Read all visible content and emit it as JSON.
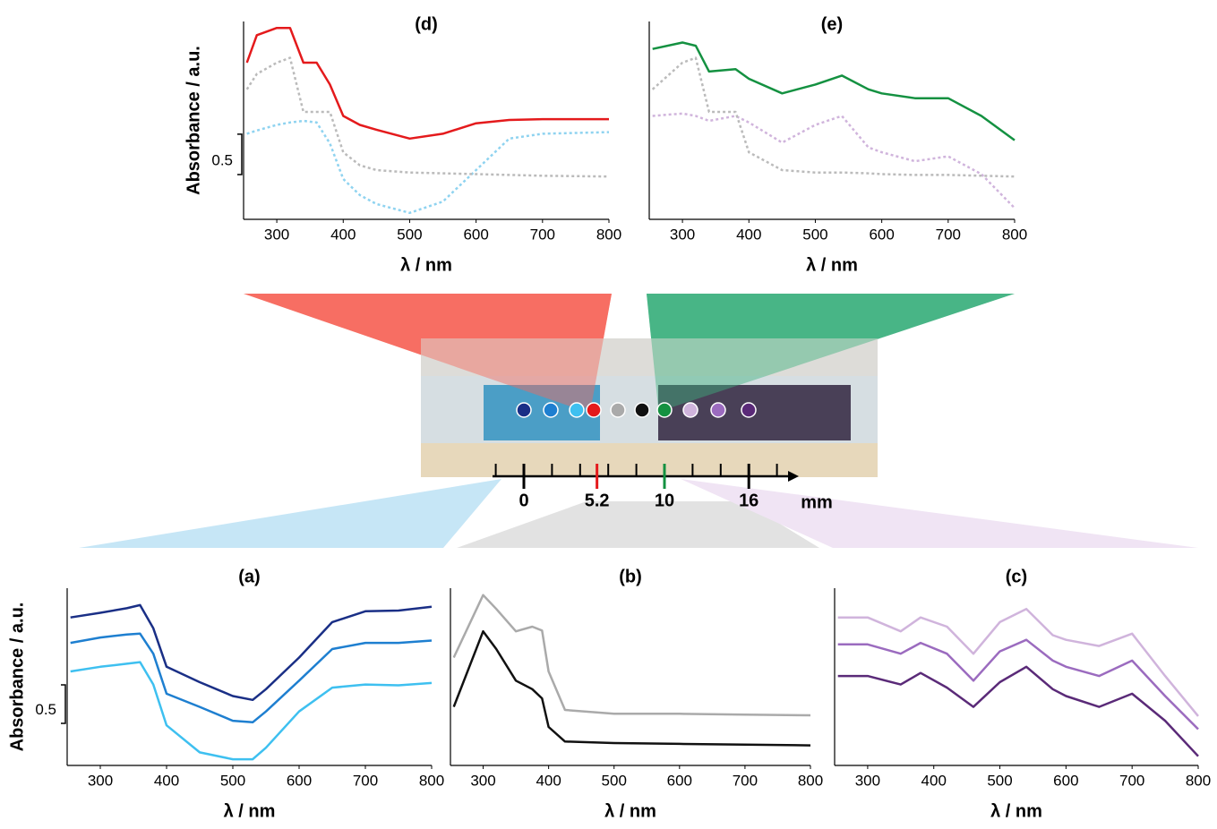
{
  "chart_data": [
    {
      "type": "line",
      "title": "(a)",
      "ylabel": "Absorbance / a.u.",
      "xlabel": "λ / nm",
      "scale_bar": 0.5,
      "x": [
        255,
        300,
        340,
        360,
        380,
        400,
        450,
        500,
        530,
        550,
        600,
        650,
        700,
        750,
        800
      ],
      "series": [
        {
          "color": "#1a2f86",
          "values": [
            1.92,
            1.98,
            2.04,
            2.08,
            1.78,
            1.28,
            1.08,
            0.9,
            0.85,
            0.99,
            1.4,
            1.86,
            2.0,
            2.01,
            2.06
          ]
        },
        {
          "color": "#1e7fd0",
          "values": [
            1.59,
            1.66,
            1.7,
            1.71,
            1.45,
            0.93,
            0.76,
            0.58,
            0.56,
            0.7,
            1.1,
            1.51,
            1.59,
            1.59,
            1.62
          ]
        },
        {
          "color": "#3ec0f0",
          "values": [
            1.22,
            1.28,
            1.32,
            1.34,
            1.05,
            0.52,
            0.17,
            0.08,
            0.08,
            0.23,
            0.7,
            1.01,
            1.05,
            1.04,
            1.07
          ]
        }
      ],
      "xlim": [
        250,
        800
      ],
      "xticks": [
        300,
        400,
        500,
        600,
        700,
        800
      ],
      "ylim": [
        0,
        2.3
      ]
    },
    {
      "type": "line",
      "title": "(b)",
      "xlabel": "λ / nm",
      "x": [
        255,
        300,
        320,
        350,
        375,
        390,
        400,
        425,
        500,
        600,
        700,
        800
      ],
      "series": [
        {
          "color": "#aaaaaa",
          "values": [
            1.4,
            2.21,
            2.03,
            1.74,
            1.8,
            1.75,
            1.22,
            0.72,
            0.67,
            0.67,
            0.66,
            0.65
          ]
        },
        {
          "color": "#111111",
          "values": [
            0.76,
            1.74,
            1.51,
            1.1,
            0.99,
            0.87,
            0.5,
            0.31,
            0.29,
            0.28,
            0.27,
            0.26
          ]
        }
      ],
      "xlim": [
        250,
        800
      ],
      "xticks": [
        300,
        400,
        500,
        600,
        700,
        800
      ],
      "ylim": [
        0,
        2.3
      ]
    },
    {
      "type": "line",
      "title": "(c)",
      "xlabel": "λ / nm",
      "x": [
        255,
        300,
        350,
        380,
        420,
        460,
        500,
        540,
        580,
        600,
        650,
        700,
        750,
        800
      ],
      "series": [
        {
          "color": "#d0b4dc",
          "values": [
            1.92,
            1.92,
            1.74,
            1.92,
            1.8,
            1.45,
            1.86,
            2.03,
            1.69,
            1.63,
            1.55,
            1.71,
            1.16,
            0.64
          ]
        },
        {
          "color": "#9b6bbf",
          "values": [
            1.57,
            1.57,
            1.45,
            1.59,
            1.45,
            1.1,
            1.48,
            1.63,
            1.36,
            1.28,
            1.16,
            1.36,
            0.9,
            0.47
          ]
        },
        {
          "color": "#5a2a78",
          "values": [
            1.16,
            1.16,
            1.05,
            1.2,
            1.01,
            0.76,
            1.08,
            1.28,
            0.99,
            0.9,
            0.76,
            0.93,
            0.58,
            0.12
          ]
        }
      ],
      "xlim": [
        250,
        800
      ],
      "xticks": [
        300,
        400,
        500,
        600,
        700,
        800
      ],
      "ylim": [
        0,
        2.3
      ]
    },
    {
      "type": "line",
      "title": "(d)",
      "ylabel": "Absorbance / a.u.",
      "xlabel": "λ / nm",
      "scale_bar": 0.5,
      "x": [
        255,
        270,
        300,
        320,
        340,
        360,
        380,
        400,
        425,
        450,
        500,
        550,
        600,
        650,
        700,
        800
      ],
      "series": [
        {
          "color": "#8fd3f0",
          "dashed": true,
          "values": [
            1.06,
            1.1,
            1.17,
            1.2,
            1.22,
            1.2,
            0.94,
            0.5,
            0.3,
            0.19,
            0.08,
            0.22,
            0.61,
            1.0,
            1.06,
            1.08
          ]
        },
        {
          "color": "#bbbbbb",
          "dashed": true,
          "values": [
            1.61,
            1.8,
            1.94,
            2.0,
            1.33,
            1.33,
            1.33,
            0.83,
            0.67,
            0.61,
            0.58,
            0.57,
            0.56,
            0.55,
            0.54,
            0.53
          ]
        },
        {
          "color": "#e41a1c",
          "values": [
            1.94,
            2.28,
            2.37,
            2.37,
            1.94,
            1.94,
            1.67,
            1.28,
            1.17,
            1.11,
            1.0,
            1.06,
            1.19,
            1.23,
            1.24,
            1.24
          ]
        }
      ],
      "xlim": [
        250,
        800
      ],
      "xticks": [
        300,
        400,
        500,
        600,
        700,
        800
      ],
      "ylim": [
        0,
        2.45
      ]
    },
    {
      "type": "line",
      "title": "(e)",
      "xlabel": "λ / nm",
      "x": [
        255,
        300,
        320,
        340,
        380,
        400,
        450,
        500,
        540,
        580,
        600,
        650,
        700,
        750,
        800
      ],
      "series": [
        {
          "color": "#d0b4dc",
          "dashed": true,
          "values": [
            1.28,
            1.31,
            1.28,
            1.22,
            1.28,
            1.2,
            0.95,
            1.17,
            1.28,
            0.89,
            0.83,
            0.72,
            0.78,
            0.56,
            0.14
          ]
        },
        {
          "color": "#bbbbbb",
          "dashed": true,
          "values": [
            1.61,
            1.94,
            2.0,
            1.33,
            1.33,
            0.83,
            0.61,
            0.58,
            0.58,
            0.57,
            0.56,
            0.55,
            0.55,
            0.54,
            0.53
          ]
        },
        {
          "color": "#149141",
          "values": [
            2.11,
            2.19,
            2.15,
            1.83,
            1.86,
            1.74,
            1.56,
            1.67,
            1.78,
            1.61,
            1.56,
            1.5,
            1.5,
            1.28,
            0.98
          ]
        }
      ],
      "xlim": [
        250,
        800
      ],
      "xticks": [
        300,
        400,
        500,
        600,
        700,
        800
      ],
      "ylim": [
        0,
        2.45
      ]
    }
  ],
  "ruler": {
    "ticks": [
      0,
      5.2,
      10,
      16
    ],
    "tick_colors": [
      "#000000",
      "#e41a1c",
      "#149141",
      "#000000"
    ],
    "minor_ticks": [
      -2,
      2,
      4,
      6,
      8,
      12,
      14,
      18
    ],
    "unit": "mm"
  }
}
